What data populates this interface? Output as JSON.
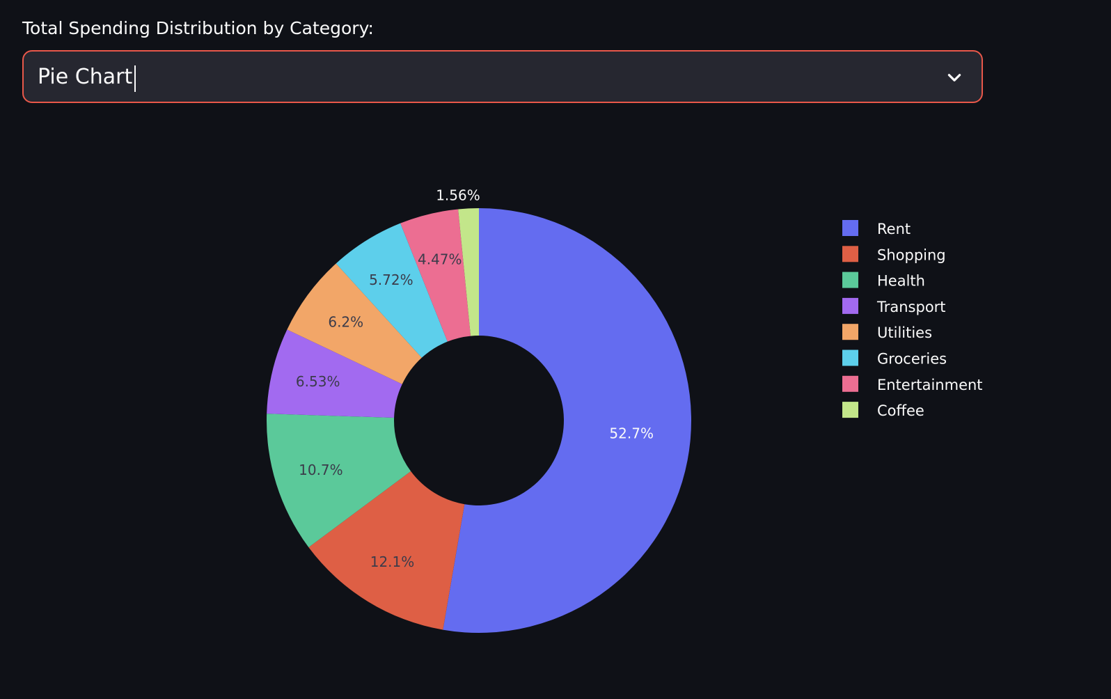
{
  "select": {
    "label": "Total Spending Distribution by Category:",
    "value": "Pie Chart",
    "chevron_icon": "chevron-down-icon"
  },
  "colors": {
    "background": "#0f1117",
    "field_bg": "#262730",
    "field_border": "#e9584a"
  },
  "chart_data": {
    "type": "pie",
    "hole": true,
    "legend_position": "right",
    "categories": [
      "Rent",
      "Shopping",
      "Health",
      "Transport",
      "Utilities",
      "Groceries",
      "Entertainment",
      "Coffee"
    ],
    "values": [
      52.7,
      12.1,
      10.7,
      6.53,
      6.2,
      5.72,
      4.47,
      1.56
    ],
    "labels": [
      "52.7%",
      "12.1%",
      "10.7%",
      "6.53%",
      "6.2%",
      "5.72%",
      "4.47%",
      "1.56%"
    ],
    "colors": [
      "#636efa",
      "#ef553b",
      "#00cc96",
      "#ab63fa",
      "#ffa15a",
      "#19d3f3",
      "#ff6692",
      "#b6e880"
    ],
    "slice_colors_rendered": [
      "#646cf0",
      "#de5f45",
      "#5bc99a",
      "#a26af0",
      "#f2a668",
      "#5dcfeb",
      "#ec6e92",
      "#c3e68a"
    ]
  }
}
